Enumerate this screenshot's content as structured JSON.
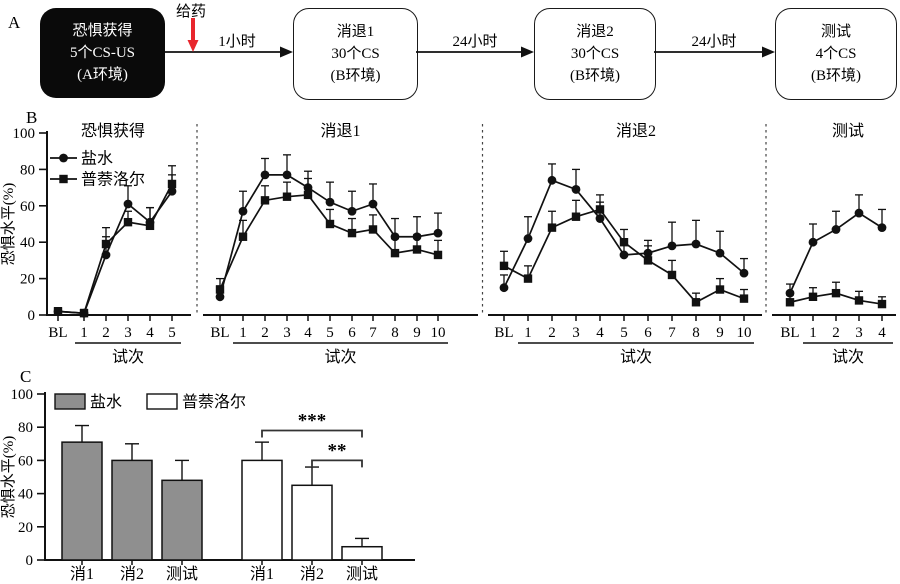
{
  "panels": {
    "a": "A",
    "b": "B",
    "c": "C"
  },
  "panel_a": {
    "injection_label": "给药",
    "injection_color": "#e8262d",
    "step_labels": [
      "1小时",
      "24小时",
      "24小时"
    ],
    "boxes": [
      {
        "style": "dark",
        "lines": [
          "恐惧获得",
          "5个CS-US",
          "(A环境)"
        ]
      },
      {
        "style": "light",
        "lines": [
          "消退1",
          "30个CS",
          "(B环境)"
        ]
      },
      {
        "style": "light",
        "lines": [
          "消退2",
          "30个CS",
          "(B环境)"
        ]
      },
      {
        "style": "light",
        "lines": [
          "测试",
          "4个CS",
          "(B环境)"
        ]
      }
    ]
  },
  "chart_data": [
    {
      "type": "line",
      "title": "恐惧获得",
      "xlabel": "试次",
      "ylabel": "恐惧水平(%)",
      "ylim": [
        0,
        100
      ],
      "yticks": [
        0,
        20,
        40,
        60,
        80,
        100
      ],
      "categories": [
        "BL",
        "1",
        "2",
        "3",
        "4",
        "5"
      ],
      "legend_position": "top-left",
      "series": [
        {
          "name": "盐水",
          "marker": "circle",
          "color": "#111111",
          "values": [
            2,
            1,
            33,
            61,
            51,
            68
          ],
          "errors": [
            2,
            2,
            10,
            10,
            8,
            9
          ]
        },
        {
          "name": "普萘洛尔",
          "marker": "square",
          "color": "#111111",
          "values": [
            2,
            1,
            39,
            51,
            49,
            72
          ],
          "errors": [
            2,
            2,
            9,
            6,
            10,
            10
          ]
        }
      ]
    },
    {
      "type": "line",
      "title": "消退1",
      "xlabel": "试次",
      "ylim": [
        0,
        100
      ],
      "categories": [
        "BL",
        "1",
        "2",
        "3",
        "4",
        "5",
        "6",
        "7",
        "8",
        "9",
        "10"
      ],
      "series": [
        {
          "name": "盐水",
          "marker": "circle",
          "color": "#111111",
          "values": [
            10,
            57,
            77,
            77,
            70,
            62,
            57,
            61,
            43,
            43,
            45
          ],
          "errors": [
            6,
            11,
            9,
            11,
            9,
            11,
            11,
            11,
            10,
            11,
            11
          ]
        },
        {
          "name": "普萘洛尔",
          "marker": "square",
          "color": "#111111",
          "values": [
            14,
            43,
            63,
            65,
            66,
            50,
            45,
            47,
            34,
            36,
            33
          ],
          "errors": [
            6,
            9,
            8,
            8,
            9,
            8,
            8,
            8,
            8,
            8,
            8
          ]
        }
      ]
    },
    {
      "type": "line",
      "title": "消退2",
      "xlabel": "试次",
      "ylim": [
        0,
        100
      ],
      "categories": [
        "BL",
        "1",
        "2",
        "3",
        "4",
        "5",
        "6",
        "7",
        "8",
        "9",
        "10"
      ],
      "series": [
        {
          "name": "盐水",
          "marker": "circle",
          "color": "#111111",
          "values": [
            15,
            42,
            74,
            69,
            53,
            33,
            34,
            38,
            39,
            34,
            23
          ],
          "errors": [
            7,
            12,
            9,
            11,
            9,
            8,
            7,
            13,
            13,
            12,
            8
          ]
        },
        {
          "name": "普萘洛尔",
          "marker": "square",
          "color": "#111111",
          "values": [
            27,
            20,
            48,
            54,
            58,
            40,
            30,
            22,
            7,
            14,
            9
          ],
          "errors": [
            8,
            7,
            9,
            9,
            8,
            7,
            8,
            8,
            5,
            6,
            5
          ]
        }
      ]
    },
    {
      "type": "line",
      "title": "测试",
      "xlabel": "试次",
      "ylim": [
        0,
        100
      ],
      "categories": [
        "BL",
        "1",
        "2",
        "3",
        "4"
      ],
      "series": [
        {
          "name": "盐水",
          "marker": "circle",
          "color": "#111111",
          "values": [
            12,
            40,
            47,
            56,
            48
          ],
          "errors": [
            5,
            10,
            10,
            10,
            10
          ]
        },
        {
          "name": "普萘洛尔",
          "marker": "square",
          "color": "#111111",
          "values": [
            7,
            10,
            12,
            8,
            6
          ],
          "errors": [
            4,
            5,
            6,
            5,
            4
          ]
        }
      ]
    },
    {
      "type": "bar",
      "ylabel": "恐惧水平(%)",
      "ylim": [
        0,
        100
      ],
      "yticks": [
        0,
        20,
        40,
        60,
        80,
        100
      ],
      "categories": [
        "消1",
        "消2",
        "测试"
      ],
      "series": [
        {
          "name": "盐水",
          "fill": "#8f8f8f",
          "values": [
            71,
            60,
            48
          ],
          "errors": [
            10,
            10,
            12
          ]
        },
        {
          "name": "普萘洛尔",
          "fill": "#ffffff",
          "values": [
            60,
            45,
            8
          ],
          "errors": [
            11,
            11,
            5
          ]
        }
      ],
      "significance": [
        {
          "label": "***",
          "series": 1,
          "from": 0,
          "to": 2,
          "height": 78
        },
        {
          "label": "**",
          "series": 1,
          "from": 1,
          "to": 2,
          "height": 60
        }
      ]
    }
  ]
}
